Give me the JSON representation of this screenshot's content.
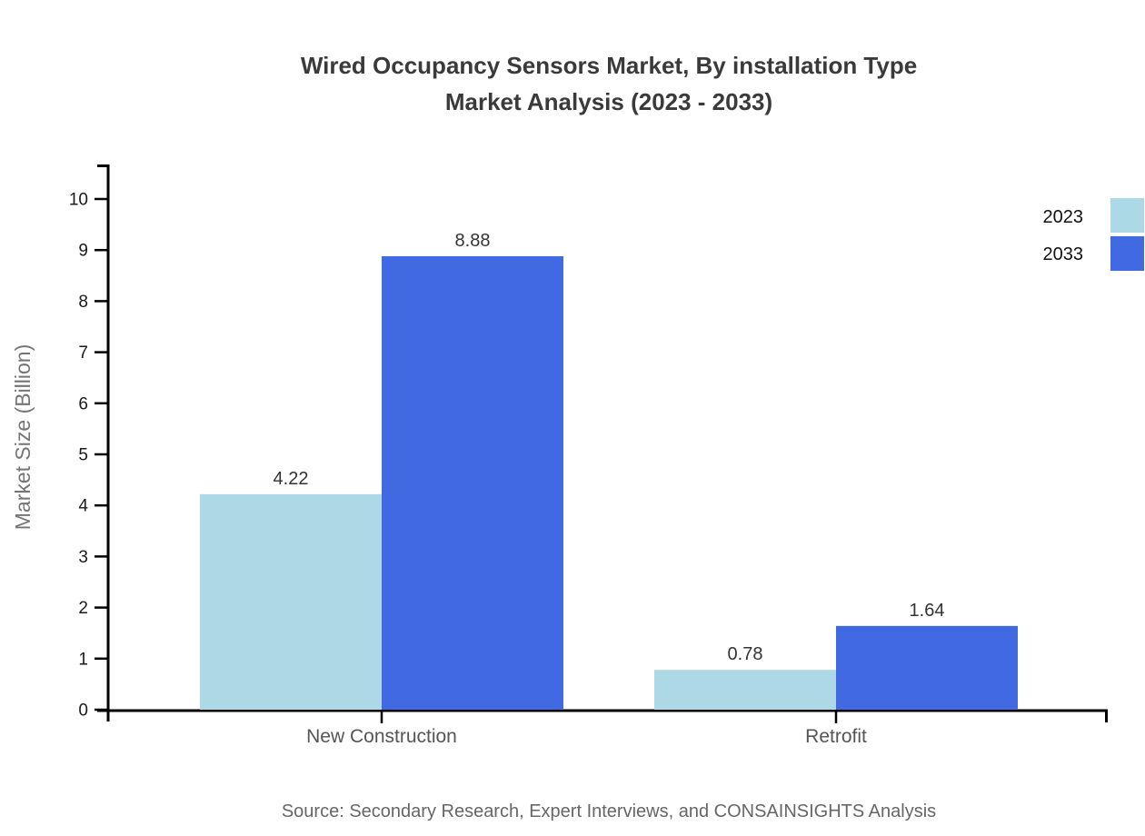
{
  "title": {
    "line1": "Wired Occupancy Sensors Market, By installation Type",
    "line2": "Market Analysis (2023 - 2033)"
  },
  "source": "Source: Secondary Research, Expert Interviews, and CONSAINSIGHTS Analysis",
  "chart_data": {
    "type": "bar",
    "categories": [
      "New Construction",
      "Retrofit"
    ],
    "series": [
      {
        "name": "2023",
        "color": "#add8e6",
        "values": [
          4.22,
          0.78
        ]
      },
      {
        "name": "2033",
        "color": "#4169e1",
        "values": [
          8.88,
          1.64
        ]
      }
    ],
    "value_labels": [
      "4.22",
      "8.88",
      "0.78",
      "1.64"
    ],
    "title": "Wired Occupancy Sensors Market, By installation Type Market Analysis (2023 - 2033)",
    "xlabel": "",
    "ylabel": "Market Size (Billion)",
    "ylim": [
      0,
      10
    ],
    "yticks": [
      0,
      1,
      2,
      3,
      4,
      5,
      6,
      7,
      8,
      9,
      10
    ],
    "grid": false,
    "legend_position": "top-right",
    "axis_color": "#000000"
  }
}
